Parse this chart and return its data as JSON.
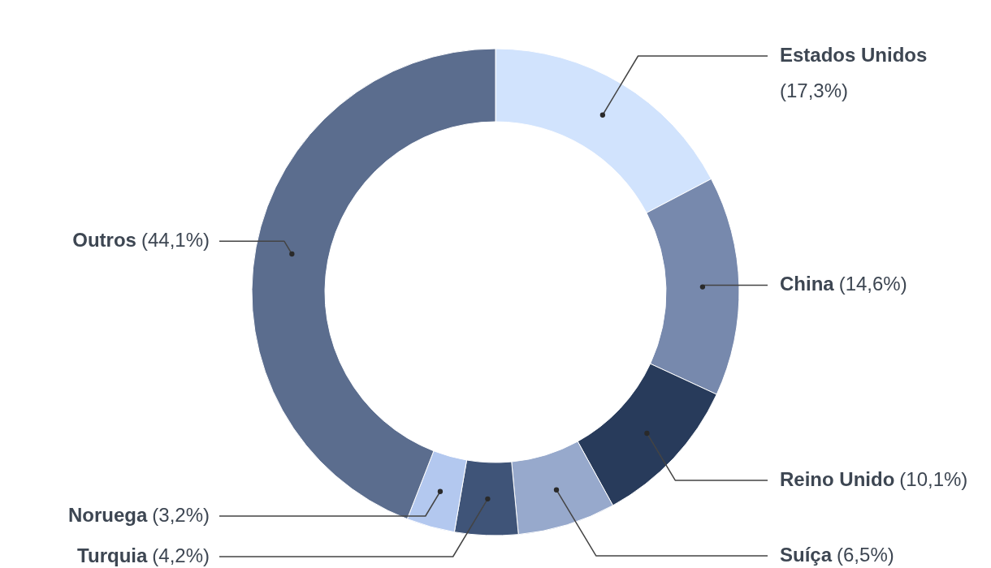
{
  "chart_data": {
    "type": "donut",
    "categories": [
      "Estados Unidos",
      "China",
      "Reino Unido",
      "Suíça",
      "Turquia",
      "Noruega",
      "Outros"
    ],
    "values": [
      17.3,
      14.6,
      10.1,
      6.5,
      4.2,
      3.2,
      44.1
    ],
    "value_labels": [
      "(17,3%)",
      "(14,6%)",
      "(10,1%)",
      "(6,5%)",
      "(4,2%)",
      "(3,2%)",
      "(44,1%)"
    ],
    "colors": [
      "#d1e3fd",
      "#7789ad",
      "#283b5b",
      "#97a9cc",
      "#3f5478",
      "#b3c8ef",
      "#5b6d8e"
    ]
  }
}
